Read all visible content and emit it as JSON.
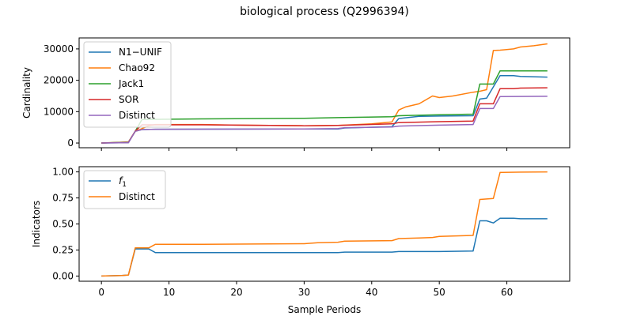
{
  "title": "biological process (Q2996394)",
  "chart_data": [
    {
      "type": "line",
      "ylabel": "Cardinality",
      "xlabel": "",
      "xlim": [
        -3.3,
        69.3
      ],
      "ylim": [
        -1500,
        33500
      ],
      "xticks": [
        0,
        10,
        20,
        30,
        40,
        50,
        60
      ],
      "yticks": [
        0,
        10000,
        20000,
        30000
      ],
      "ytick_labels": [
        "0",
        "10000",
        "20000",
        "30000"
      ],
      "legend_loc": "upper-left",
      "series": [
        {
          "name": "N1−UNIF",
          "color": "#1f77b4",
          "points": [
            [
              0,
              0
            ],
            [
              4,
              100
            ],
            [
              5,
              3800
            ],
            [
              6,
              4300
            ],
            [
              8,
              4400
            ],
            [
              35,
              4500
            ],
            [
              36,
              4800
            ],
            [
              43,
              5200
            ],
            [
              44,
              7800
            ],
            [
              47,
              8500
            ],
            [
              50,
              8600
            ],
            [
              55,
              8700
            ],
            [
              56,
              14000
            ],
            [
              57,
              14300
            ],
            [
              59,
              21500
            ],
            [
              61,
              21500
            ],
            [
              62,
              21200
            ],
            [
              66,
              21000
            ]
          ]
        },
        {
          "name": "Chao92",
          "color": "#ff7f0e",
          "points": [
            [
              0,
              0
            ],
            [
              4,
              300
            ],
            [
              5,
              3700
            ],
            [
              6,
              4600
            ],
            [
              7,
              5500
            ],
            [
              8,
              5900
            ],
            [
              15,
              5900
            ],
            [
              20,
              5700
            ],
            [
              30,
              5500
            ],
            [
              35,
              5600
            ],
            [
              40,
              6100
            ],
            [
              43,
              6700
            ],
            [
              44,
              10500
            ],
            [
              45,
              11500
            ],
            [
              47,
              12500
            ],
            [
              49,
              15000
            ],
            [
              50,
              14500
            ],
            [
              52,
              15000
            ],
            [
              55,
              16200
            ],
            [
              56,
              16500
            ],
            [
              57,
              17000
            ],
            [
              58,
              29500
            ],
            [
              59,
              29600
            ],
            [
              61,
              30000
            ],
            [
              62,
              30600
            ],
            [
              64,
              31000
            ],
            [
              66,
              31600
            ]
          ]
        },
        {
          "name": "Jack1",
          "color": "#2ca02c",
          "points": [
            [
              0,
              0
            ],
            [
              4,
              300
            ],
            [
              5,
              3700
            ],
            [
              6,
              7500
            ],
            [
              15,
              7700
            ],
            [
              30,
              7900
            ],
            [
              35,
              8100
            ],
            [
              43,
              8400
            ],
            [
              44,
              8700
            ],
            [
              50,
              9000
            ],
            [
              55,
              9200
            ],
            [
              56,
              18800
            ],
            [
              58,
              18800
            ],
            [
              59,
              23000
            ],
            [
              66,
              23000
            ]
          ]
        },
        {
          "name": "SOR",
          "color": "#d62728",
          "points": [
            [
              0,
              0
            ],
            [
              4,
              200
            ],
            [
              5,
              3800
            ],
            [
              6,
              5800
            ],
            [
              15,
              5800
            ],
            [
              20,
              5700
            ],
            [
              30,
              5500
            ],
            [
              35,
              5600
            ],
            [
              43,
              6100
            ],
            [
              44,
              6500
            ],
            [
              50,
              6800
            ],
            [
              55,
              7000
            ],
            [
              56,
              12500
            ],
            [
              58,
              12500
            ],
            [
              59,
              17300
            ],
            [
              61,
              17300
            ],
            [
              62,
              17500
            ],
            [
              66,
              17600
            ]
          ]
        },
        {
          "name": "Distinct",
          "color": "#9467bd",
          "points": [
            [
              0,
              0
            ],
            [
              4,
              100
            ],
            [
              5,
              3700
            ],
            [
              6,
              4300
            ],
            [
              8,
              4400
            ],
            [
              30,
              4500
            ],
            [
              35,
              4600
            ],
            [
              36,
              4900
            ],
            [
              43,
              5100
            ],
            [
              44,
              5400
            ],
            [
              50,
              5700
            ],
            [
              55,
              5900
            ],
            [
              56,
              11000
            ],
            [
              58,
              11000
            ],
            [
              59,
              14800
            ],
            [
              66,
              14900
            ]
          ]
        }
      ]
    },
    {
      "type": "line",
      "ylabel": "Indicators",
      "xlabel": "Sample Periods",
      "xlim": [
        -3.3,
        69.3
      ],
      "ylim": [
        -0.05,
        1.05
      ],
      "xticks": [
        0,
        10,
        20,
        30,
        40,
        50,
        60
      ],
      "xtick_labels": [
        "0",
        "10",
        "20",
        "30",
        "40",
        "50",
        "60"
      ],
      "yticks": [
        0.0,
        0.25,
        0.5,
        0.75,
        1.0
      ],
      "ytick_labels": [
        "0.00",
        "0.25",
        "0.50",
        "0.75",
        "1.00"
      ],
      "legend_loc": "upper-left",
      "series": [
        {
          "name": "f1",
          "color": "#1f77b4",
          "points": [
            [
              0,
              0.0
            ],
            [
              3,
              0.005
            ],
            [
              4,
              0.01
            ],
            [
              5,
              0.26
            ],
            [
              6,
              0.26
            ],
            [
              7,
              0.26
            ],
            [
              8,
              0.225
            ],
            [
              35,
              0.225
            ],
            [
              36,
              0.23
            ],
            [
              43,
              0.23
            ],
            [
              44,
              0.235
            ],
            [
              50,
              0.235
            ],
            [
              55,
              0.24
            ],
            [
              56,
              0.53
            ],
            [
              57,
              0.53
            ],
            [
              58,
              0.51
            ],
            [
              59,
              0.555
            ],
            [
              61,
              0.555
            ],
            [
              62,
              0.55
            ],
            [
              66,
              0.55
            ]
          ]
        },
        {
          "name": "Distinct",
          "color": "#ff7f0e",
          "points": [
            [
              0,
              0.0
            ],
            [
              3,
              0.005
            ],
            [
              4,
              0.01
            ],
            [
              5,
              0.27
            ],
            [
              7,
              0.27
            ],
            [
              8,
              0.305
            ],
            [
              15,
              0.305
            ],
            [
              30,
              0.31
            ],
            [
              32,
              0.32
            ],
            [
              35,
              0.325
            ],
            [
              36,
              0.335
            ],
            [
              43,
              0.34
            ],
            [
              44,
              0.36
            ],
            [
              47,
              0.365
            ],
            [
              49,
              0.37
            ],
            [
              50,
              0.38
            ],
            [
              52,
              0.385
            ],
            [
              55,
              0.39
            ],
            [
              56,
              0.735
            ],
            [
              58,
              0.745
            ],
            [
              59,
              0.995
            ],
            [
              62,
              0.998
            ],
            [
              66,
              1.0
            ]
          ]
        }
      ]
    }
  ]
}
